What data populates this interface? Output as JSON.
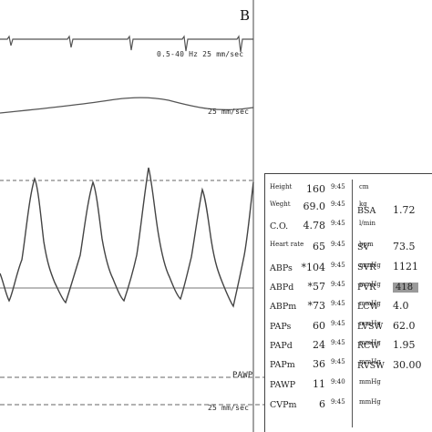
{
  "panel_letter": "B",
  "labels": {
    "trace1": "0.5-40 Hz 25 mm/sec",
    "trace2": "25 mm/sec",
    "trace3_channel": "PAWP",
    "trace3_speed": "25 mm/sec"
  },
  "vitals": [
    {
      "label": "Height",
      "value": "160",
      "time": "9:45",
      "unit": "cm"
    },
    {
      "label": "Weght",
      "value": "69.0",
      "time": "9:45",
      "unit": "kg"
    },
    {
      "label": "C.O.",
      "value": "4.78",
      "time": "9:45",
      "unit": "l/min"
    },
    {
      "label": "Heart rate",
      "value": "65",
      "time": "9:45",
      "unit": "bpm"
    },
    {
      "label": "ABPs",
      "value": "*104",
      "time": "9:45",
      "unit": "mmHg"
    },
    {
      "label": "ABPd",
      "value": "*57",
      "time": "9:45",
      "unit": "mmHg"
    },
    {
      "label": "ABPm",
      "value": "*73",
      "time": "9:45",
      "unit": "mmHg"
    },
    {
      "label": "PAPs",
      "value": "60",
      "time": "9:45",
      "unit": "mmHg"
    },
    {
      "label": "PAPd",
      "value": "24",
      "time": "9:45",
      "unit": "mmHg"
    },
    {
      "label": "PAPm",
      "value": "36",
      "time": "9:45",
      "unit": "mmHg"
    },
    {
      "label": "PAWP",
      "value": "11",
      "time": "9:40",
      "unit": "mmHg"
    },
    {
      "label": "CVPm",
      "value": "6",
      "time": "9:45",
      "unit": "mmHg"
    }
  ],
  "derived": [
    {
      "label": "BSA",
      "value": "1.72"
    },
    {
      "label": "SV",
      "value": "73.5"
    },
    {
      "label": "SVR",
      "value": "1121"
    },
    {
      "label": "PVR",
      "value": "418"
    },
    {
      "label": "LCW",
      "value": "4.0"
    },
    {
      "label": "LVSW",
      "value": "62.0"
    },
    {
      "label": "RCW",
      "value": "1.95"
    },
    {
      "label": "RVSW",
      "value": "30.00"
    }
  ]
}
